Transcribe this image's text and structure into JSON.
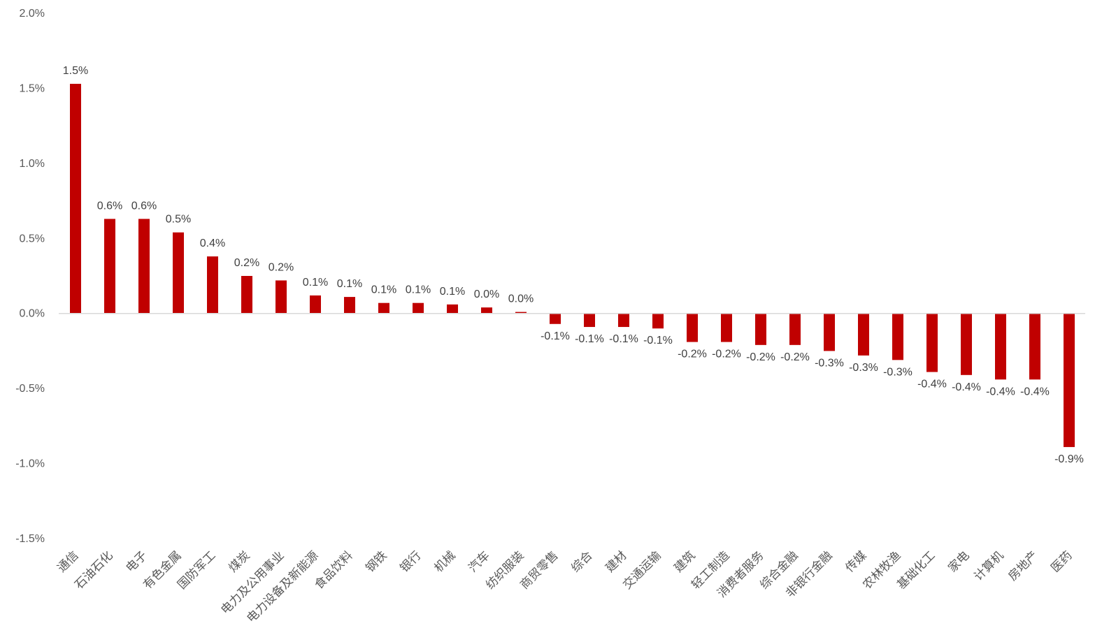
{
  "chart_data": {
    "type": "bar",
    "bar_color": "#C00000",
    "axis_color": "#D9D9D9",
    "grid": false,
    "ylim": [
      -0.015,
      0.02
    ],
    "yticks": [
      0.02,
      0.015,
      0.01,
      0.005,
      0.0,
      -0.005,
      -0.01,
      -0.015
    ],
    "ytick_labels": [
      "2.0%",
      "1.5%",
      "1.0%",
      "0.5%",
      "0.0%",
      "-0.5%",
      "-1.0%",
      "-1.5%"
    ],
    "categories": [
      "通信",
      "石油石化",
      "电子",
      "有色金属",
      "国防军工",
      "煤炭",
      "电力及公用事业",
      "电力设备及新能源",
      "食品饮料",
      "钢铁",
      "银行",
      "机械",
      "汽车",
      "纺织服装",
      "商贸零售",
      "综合",
      "建材",
      "交通运输",
      "建筑",
      "轻工制造",
      "消费者服务",
      "综合金融",
      "非银行金融",
      "传媒",
      "农林牧渔",
      "基础化工",
      "家电",
      "计算机",
      "房地产",
      "医药"
    ],
    "values": [
      0.0153,
      0.0063,
      0.0063,
      0.0054,
      0.0038,
      0.0025,
      0.0022,
      0.0012,
      0.0011,
      0.0007,
      0.0007,
      0.0006,
      0.0004,
      0.0001,
      -0.0007,
      -0.0009,
      -0.0009,
      -0.001,
      -0.0019,
      -0.0019,
      -0.0021,
      -0.0021,
      -0.0025,
      -0.0028,
      -0.0031,
      -0.0039,
      -0.0041,
      -0.0044,
      -0.0044,
      -0.0089
    ],
    "value_labels": [
      "1.5%",
      "0.6%",
      "0.6%",
      "0.5%",
      "0.4%",
      "0.2%",
      "0.2%",
      "0.1%",
      "0.1%",
      "0.1%",
      "0.1%",
      "0.1%",
      "0.0%",
      "0.0%",
      "-0.1%",
      "-0.1%",
      "-0.1%",
      "-0.1%",
      "-0.2%",
      "-0.2%",
      "-0.2%",
      "-0.2%",
      "-0.3%",
      "-0.3%",
      "-0.3%",
      "-0.4%",
      "-0.4%",
      "-0.4%",
      "-0.4%",
      "-0.9%"
    ]
  }
}
